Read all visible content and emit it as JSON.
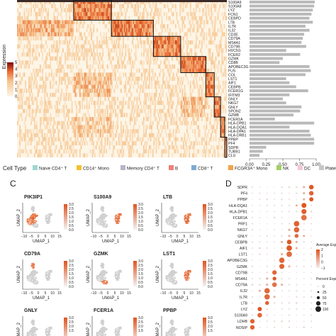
{
  "figure": {
    "panel_c_label": "C",
    "panel_d_label": "D"
  },
  "chart_data": [
    {
      "type": "heatmap",
      "panel": "top",
      "colorbar": {
        "title": "Expression",
        "ticks": [
          "5",
          "4",
          "3",
          "2",
          "1",
          "0"
        ],
        "range": [
          0,
          5
        ],
        "colors": [
          "#fdf5e6",
          "#f6c48d",
          "#e9642c",
          "#7a0b0b"
        ]
      },
      "genes": [
        "S100A9",
        "S100A8",
        "LYZ",
        "FCN1",
        "CEBPD",
        "LTB",
        "IL7R",
        "IL32",
        "CD3E",
        "CD79A",
        "MS4A1",
        "CD79B",
        "HVCN1",
        "FCER2",
        "GZMK",
        "CD8B",
        "APOBEC3G",
        "FUS",
        "COL",
        "LST1",
        "AIF1",
        "CEBPB",
        "FCER1G",
        "IFITM3",
        "GNLY",
        "NKG7",
        "GNLY",
        "SPON2",
        "GZMB",
        "FCER1A",
        "HLA-DPB1",
        "HLA-DQA1",
        "HLA-DPA1",
        "HLA-DRB1",
        "PPBP",
        "PF4",
        "SDPR",
        "TUBB1",
        "CLU"
      ],
      "bar_axis_ticks": [
        "0.00",
        "0.25",
        "0.50",
        "0.75",
        "1.00"
      ],
      "bar_values": [
        0.98,
        0.97,
        0.95,
        0.93,
        0.9,
        0.95,
        0.84,
        0.9,
        0.82,
        0.8,
        0.78,
        0.85,
        0.55,
        0.76,
        0.5,
        0.45,
        0.9,
        0.92,
        0.84,
        0.55,
        0.6,
        0.7,
        0.88,
        0.6,
        0.5,
        0.55,
        0.78,
        0.76,
        0.66,
        0.38,
        0.97,
        0.6,
        0.9,
        0.92,
        0.97,
        0.97,
        0.25,
        0.2,
        0.15
      ],
      "clusters": [
        "Naive CD4+ T",
        "CD14+ Mono",
        "Memory CD4+ T",
        "B",
        "CD8+ T",
        "FCGR3A+ Mono",
        "NK",
        "DC",
        "Platelet"
      ],
      "cluster_colors": [
        "#9fd6d2",
        "#f1c232",
        "#b7b3c9",
        "#ef7f78",
        "#7fa9d2",
        "#f3a24a",
        "#a3cf63",
        "#f5c7d6",
        "#c7c7c7"
      ],
      "legend_title": "Cell Type",
      "legend_items": [
        {
          "label": "Naive CD4⁺ T",
          "color": "#9fd6d2"
        },
        {
          "label": "CD14⁺ Mono",
          "color": "#f1c232"
        },
        {
          "label": "Memory CD4⁺ T",
          "color": "#b7b3c9"
        },
        {
          "label": "B",
          "color": "#ef7f78"
        },
        {
          "label": "CD8⁺ T",
          "color": "#7fa9d2"
        },
        {
          "label": "FCGR3A⁺ Mono",
          "color": "#f3a24a"
        },
        {
          "label": "NK",
          "color": "#a3cf63"
        },
        {
          "label": "DC",
          "color": "#f5c7d6"
        },
        {
          "label": "Platelet",
          "color": "#c7c7c7"
        }
      ]
    },
    {
      "type": "scatter",
      "panel": "C",
      "xlabel": "UMAP_1",
      "ylabel": "UMAP_2",
      "xticks": [
        "−10",
        "−5",
        "0",
        "5",
        "10",
        "15"
      ],
      "colorbar_ticks": [
        "3.0",
        "2.5",
        "2.0",
        "1.5",
        "1.0",
        "0.5",
        "0.0"
      ],
      "colors": {
        "low": "#d9d9d9",
        "high": "#e0531e"
      },
      "plots": [
        {
          "gene": "PIK3IP1",
          "region": "left_clusters"
        },
        {
          "gene": "S100A9",
          "region": "right_cluster"
        },
        {
          "gene": "LTB",
          "region": "right_cluster"
        },
        {
          "gene": "CD79A",
          "region": "top_cluster"
        },
        {
          "gene": "GZMK",
          "region": "bottom_cluster"
        },
        {
          "gene": "LST1",
          "region": "right_cluster"
        },
        {
          "gene": "GNLY",
          "region": "bottom_cluster"
        },
        {
          "gene": "FCER1A",
          "region": "none"
        },
        {
          "gene": "PPBP",
          "region": "none"
        }
      ]
    },
    {
      "type": "scatter",
      "panel": "D",
      "genes": [
        "SDPR",
        "PF4",
        "PPBP",
        "HLA-DQA1",
        "HLA-DPB1",
        "FCER1A",
        "PRF1",
        "NKG7",
        "GNLY",
        "CEBPB",
        "AIF1",
        "LST1",
        "APOBEC3G",
        "GZMK",
        "CD79B",
        "MS4A1",
        "CD79A",
        "IL32",
        "IL7R",
        "LTB",
        "LYZ",
        "S100A9",
        "LDHB",
        "NOSIP"
      ],
      "clusters": [
        "Naive CD4+ T",
        "CD14+ Mono",
        "Memory CD4+ T",
        "B",
        "CD8+ T",
        "FCGR3A+ Mono",
        "NK",
        "DC",
        "Platelet"
      ],
      "gene_cluster": [
        8,
        8,
        8,
        7,
        7,
        7,
        6,
        6,
        6,
        5,
        5,
        5,
        4,
        4,
        3,
        3,
        3,
        2,
        2,
        2,
        1,
        1,
        0,
        0
      ],
      "colorbar": {
        "title": "Average Expression",
        "ticks": [
          "2",
          "1",
          "0",
          "−1"
        ],
        "colors": [
          "#f1f1f1",
          "#e0531e"
        ]
      },
      "size_legend": {
        "title": "Percent Expressed",
        "ticks": [
          "0",
          "25",
          "50",
          "75",
          "100"
        ]
      }
    }
  ]
}
